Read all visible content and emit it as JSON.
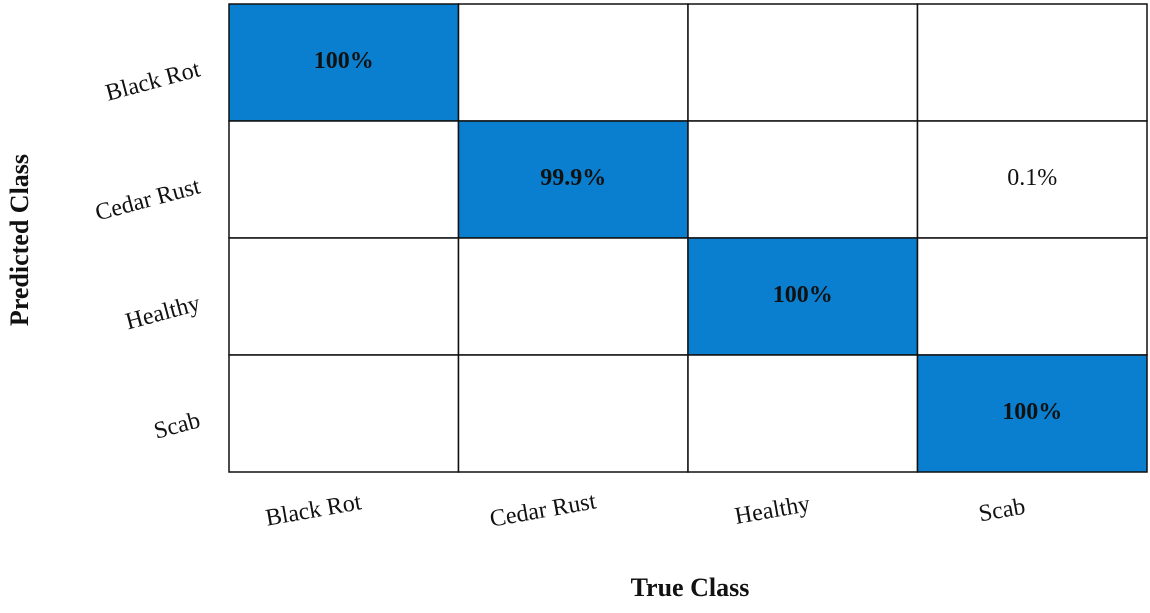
{
  "chart_data": {
    "type": "heatmap",
    "x_label": "True Class",
    "y_label": "Predicted Class",
    "x_categories": [
      "Black Rot",
      "Cedar Rust",
      "Healthy",
      "Scab"
    ],
    "y_categories": [
      "Black Rot",
      "Cedar Rust",
      "Healthy",
      "Scab"
    ],
    "values": [
      [
        100,
        null,
        null,
        null
      ],
      [
        null,
        99.9,
        null,
        0.1
      ],
      [
        null,
        null,
        100,
        null
      ],
      [
        null,
        null,
        null,
        100
      ]
    ],
    "value_labels": [
      [
        "100%",
        null,
        null,
        null
      ],
      [
        null,
        "99.9%",
        null,
        "0.1%"
      ],
      [
        null,
        null,
        "100%",
        null
      ],
      [
        null,
        null,
        null,
        "100%"
      ]
    ],
    "highlight": "diagonal",
    "highlight_color": "#0a7fcf",
    "cell_color": "#ffffff"
  }
}
